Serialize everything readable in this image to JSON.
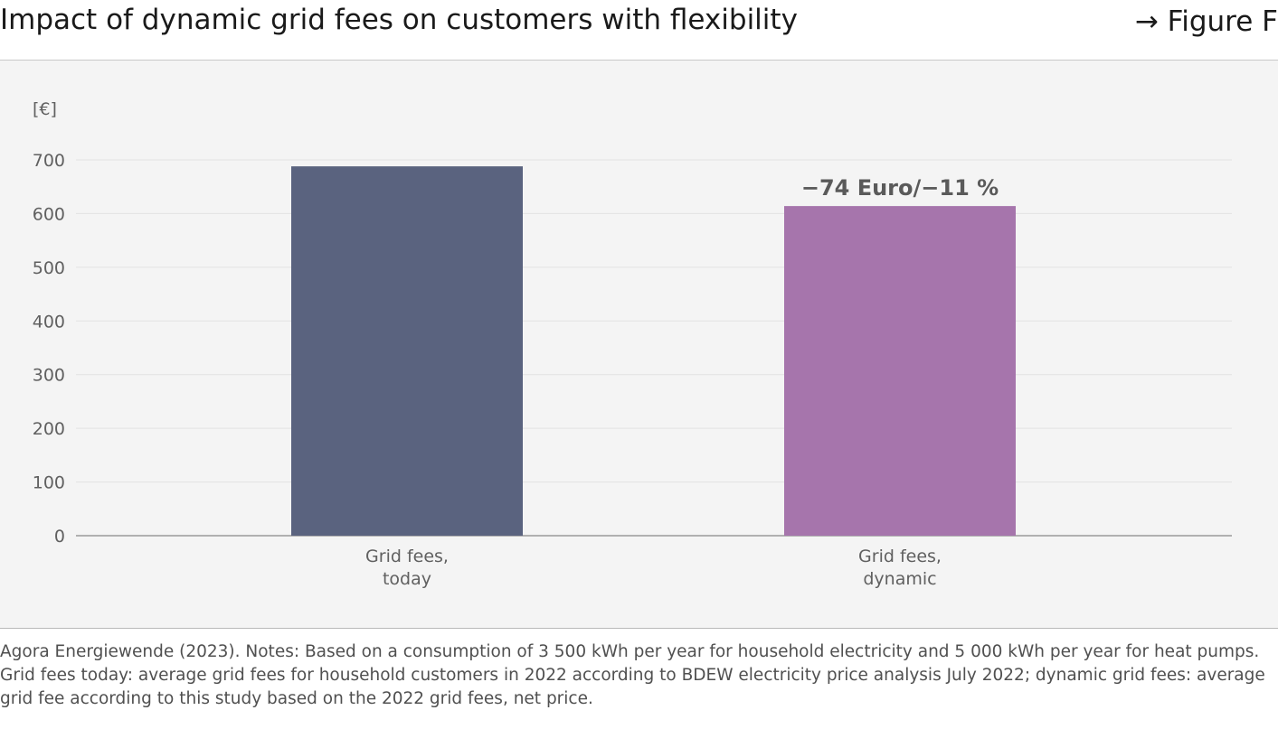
{
  "header": {
    "title": "Impact of dynamic grid fees on customers with flexibility",
    "figure_ref": "→ Figure F"
  },
  "chart_data": {
    "type": "bar",
    "title": "Impact of dynamic grid fees on customers with flexibility",
    "ylabel": "[€]",
    "xlabel": "",
    "ylim": [
      0,
      700
    ],
    "yticks": [
      0,
      100,
      200,
      300,
      400,
      500,
      600,
      700
    ],
    "grid": true,
    "categories": [
      [
        "Grid fees,",
        "today"
      ],
      [
        "Grid fees,",
        "dynamic"
      ]
    ],
    "values": [
      688,
      614
    ],
    "colors": [
      "#5a637f",
      "#a675ac"
    ],
    "annotations": [
      {
        "category_index": 1,
        "text": "−74 Euro/−11 %"
      }
    ]
  },
  "footer": {
    "source_text": "Agora Energiewende (2023). Notes: Based on a consumption of 3 500 kWh per year for household electricity and 5 000 kWh per year for heat pumps. Grid fees today: average grid fees for household customers in 2022 according to BDEW electricity price analysis July 2022; dynamic grid fees: average grid fee according to this study based on the 2022 grid fees, net price."
  }
}
